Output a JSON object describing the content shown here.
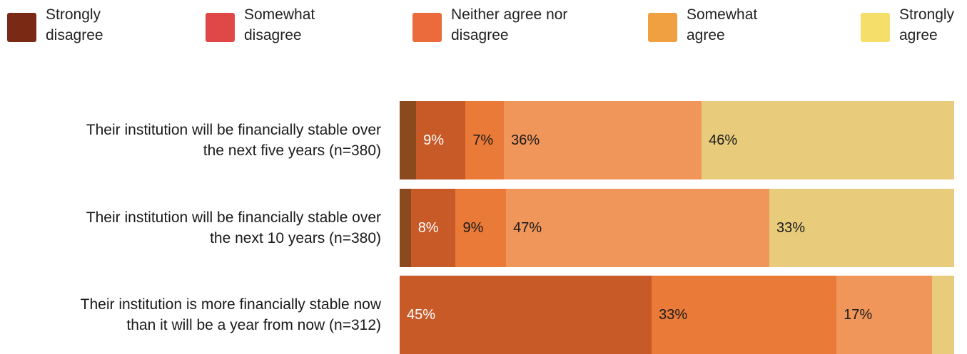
{
  "colors": {
    "strongly_disagree": "#8b4a1e",
    "somewhat_disagree": "#c85a28",
    "neither": "#ea7a38",
    "somewhat_agree": "#f0965a",
    "strongly_agree": "#e8cc7c",
    "legend_strongly_disagree": "#7a2a14",
    "legend_somewhat_disagree": "#e04848",
    "legend_neither": "#ec6b3c",
    "legend_somewhat_agree": "#f0a040",
    "legend_strongly_agree": "#f5de6a"
  },
  "legend": [
    {
      "label": "Strongly\ndisagree",
      "color_key": "legend_strongly_disagree"
    },
    {
      "label": "Somewhat\ndisagree",
      "color_key": "legend_somewhat_disagree"
    },
    {
      "label": "Neither agree nor\ndisagree",
      "color_key": "legend_neither"
    },
    {
      "label": "Somewhat\nagree",
      "color_key": "legend_somewhat_agree"
    },
    {
      "label": "Strongly\nagree",
      "color_key": "legend_strongly_agree"
    }
  ],
  "chart_data": {
    "type": "bar",
    "orientation": "horizontal",
    "stacked": true,
    "xlim": [
      0,
      100
    ],
    "legend_position": "top",
    "series_names": [
      "Strongly disagree",
      "Somewhat disagree",
      "Neither agree nor disagree",
      "Somewhat agree",
      "Strongly agree"
    ],
    "rows": [
      {
        "label": "Their institution will be financially stable over\nthe next five years (n=380)",
        "values": [
          3,
          9,
          7,
          36,
          46
        ],
        "labels": [
          "",
          "9%",
          "7%",
          "36%",
          "46%"
        ]
      },
      {
        "label": "Their institution will be financially stable over\nthe next 10 years (n=380)",
        "values": [
          2,
          8,
          9,
          47,
          33
        ],
        "labels": [
          "",
          "8%",
          "9%",
          "47%",
          "33%"
        ]
      },
      {
        "label": "Their institution is more financially stable now\nthan it will be a year from now (n=312)",
        "values": [
          0,
          45,
          33,
          17,
          4
        ],
        "labels": [
          "",
          "45%",
          "33%",
          "17%",
          ""
        ]
      }
    ]
  }
}
